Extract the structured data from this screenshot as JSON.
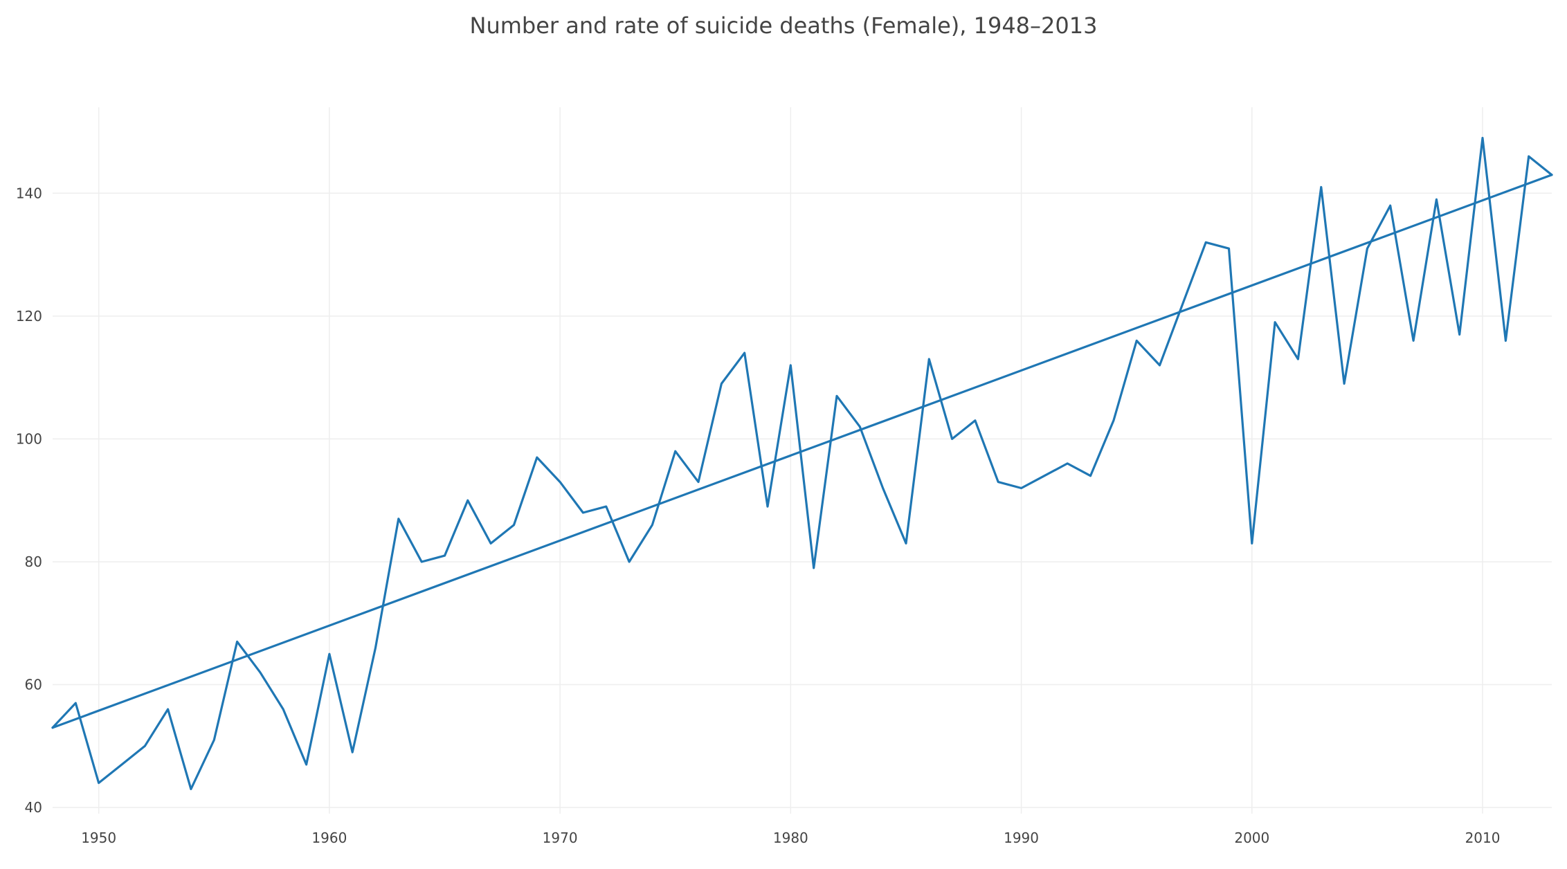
{
  "chart_data": {
    "type": "line",
    "title": "Number and rate of suicide deaths (Female), 1948–2013",
    "xlabel": "",
    "ylabel": "",
    "xlim": [
      1948,
      2013
    ],
    "ylim": [
      39,
      154
    ],
    "x_ticks": [
      1950,
      1960,
      1970,
      1980,
      1990,
      2000,
      2010
    ],
    "y_ticks": [
      40,
      60,
      80,
      100,
      120,
      140
    ],
    "grid": true,
    "legend": "none",
    "colors": {
      "line": "#1f77b4",
      "grid": "#eeeeee",
      "text": "#444444"
    },
    "series": [
      {
        "x": [
          1948,
          1949,
          1950,
          1951,
          1952,
          1953,
          1954,
          1955,
          1956,
          1957,
          1958,
          1959,
          1960,
          1961,
          1962,
          1963,
          1964,
          1965,
          1966,
          1967,
          1968,
          1969,
          1970,
          1971,
          1972,
          1973,
          1974,
          1975,
          1976,
          1977,
          1978,
          1979,
          1980,
          1981,
          1982,
          1983,
          1984,
          1985,
          1986,
          1987,
          1988,
          1989,
          1990,
          1991,
          1992,
          1993,
          1994,
          1995,
          1996,
          1997,
          1998,
          1999,
          2000,
          2001,
          2002,
          2003,
          2004,
          2005,
          2006,
          2007,
          2008,
          2009,
          2010,
          2011,
          2012,
          2013
        ],
        "values": [
          53,
          57,
          44,
          47,
          50,
          56,
          43,
          51,
          67,
          62,
          56,
          47,
          65,
          49,
          66,
          87,
          80,
          81,
          90,
          83,
          86,
          97,
          93,
          88,
          89,
          80,
          86,
          98,
          93,
          109,
          114,
          89,
          112,
          79,
          107,
          102,
          92,
          83,
          113,
          100,
          103,
          93,
          92,
          94,
          96,
          94,
          103,
          116,
          112,
          122,
          132,
          131,
          83,
          119,
          113,
          141,
          109,
          131,
          138,
          116,
          139,
          117,
          149,
          116,
          146,
          143
        ]
      },
      {
        "x": [
          1948,
          2013
        ],
        "values": [
          53,
          143
        ]
      }
    ]
  }
}
